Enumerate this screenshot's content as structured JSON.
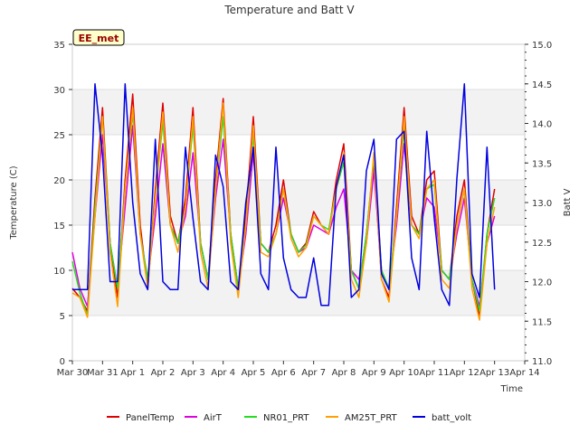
{
  "chart_data": {
    "type": "line",
    "title": "Temperature and Batt V",
    "xlabel": "Time",
    "ylabel": "Temperature (C)",
    "y2label": "Batt V",
    "site_label": "EE_met",
    "xlim": [
      0,
      15
    ],
    "ylim": [
      0,
      35
    ],
    "y2lim": [
      11.0,
      15.0
    ],
    "x_tick_values": [
      0,
      1,
      2,
      3,
      4,
      5,
      6,
      7,
      8,
      9,
      10,
      11,
      12,
      13,
      14,
      15
    ],
    "x_tick_labels": [
      "Mar 30",
      "Mar 31",
      "Apr 1",
      "Apr 2",
      "Apr 3",
      "Apr 4",
      "Apr 5",
      "Apr 6",
      "Apr 7",
      "Apr 8",
      "Apr 9",
      "Apr 10",
      "Apr 11",
      "Apr 12",
      "Apr 13",
      "Apr 14"
    ],
    "y_ticks": [
      0,
      5,
      10,
      15,
      20,
      25,
      30,
      35
    ],
    "y2_ticks": [
      11.0,
      11.5,
      12.0,
      12.5,
      13.0,
      13.5,
      14.0,
      14.5,
      15.0
    ],
    "bands": [
      [
        5,
        10
      ],
      [
        15,
        20
      ],
      [
        25,
        30
      ]
    ],
    "grid": true,
    "legend_position": "bottom",
    "colors": {
      "band": "#f2f2f2",
      "grid": "#dddddd",
      "badge_fill": "#ffffcc",
      "badge_border": "#000000"
    },
    "x": [
      0.0,
      0.25,
      0.5,
      0.75,
      1.0,
      1.25,
      1.5,
      1.75,
      2.0,
      2.25,
      2.5,
      2.75,
      3.0,
      3.25,
      3.5,
      3.75,
      4.0,
      4.25,
      4.5,
      4.75,
      5.0,
      5.25,
      5.5,
      5.75,
      6.0,
      6.25,
      6.5,
      6.75,
      7.0,
      7.25,
      7.5,
      7.75,
      8.0,
      8.25,
      8.5,
      8.75,
      9.0,
      9.25,
      9.5,
      9.75,
      10.0,
      10.25,
      10.5,
      10.75,
      11.0,
      11.25,
      11.5,
      11.75,
      12.0,
      12.25,
      12.5,
      12.75,
      13.0,
      13.25,
      13.5,
      13.75,
      14.0
    ],
    "series": [
      {
        "name": "PanelTemp",
        "color": "#e00000",
        "axis": "left",
        "values": [
          8,
          7,
          5.5,
          18,
          28,
          13,
          7,
          20,
          29.5,
          15,
          8,
          19,
          28.5,
          16,
          13,
          18,
          28,
          13,
          9,
          20,
          29,
          14,
          8,
          16,
          27,
          13,
          12,
          15,
          20,
          14,
          12,
          13,
          16.5,
          15,
          14,
          20,
          24,
          10,
          8,
          14,
          22,
          9,
          7,
          17,
          28,
          16,
          14,
          20,
          21,
          10,
          9,
          16,
          20,
          9,
          5,
          14,
          19
        ]
      },
      {
        "name": "AirT",
        "color": "#e000e0",
        "axis": "left",
        "values": [
          12,
          8,
          6,
          16,
          25,
          13,
          8,
          17,
          26,
          14,
          9,
          16,
          24,
          15,
          13,
          16,
          23,
          13,
          9,
          18,
          24.5,
          14,
          8,
          14,
          23,
          13,
          12,
          14,
          18,
          14,
          12,
          12.5,
          15,
          14.5,
          14,
          17,
          19,
          10,
          9,
          13,
          21,
          10,
          8,
          15,
          24,
          15,
          14,
          18,
          17,
          10,
          9,
          14,
          18,
          9,
          6,
          13,
          16
        ]
      },
      {
        "name": "NR01_PRT",
        "color": "#22dd22",
        "axis": "left",
        "values": [
          11,
          7.5,
          5,
          17,
          27,
          13,
          8,
          19,
          27.5,
          14,
          9,
          18,
          26.5,
          15,
          13,
          17,
          26,
          13,
          9,
          19,
          27,
          14,
          8,
          15,
          25,
          13,
          12,
          14,
          19,
          14,
          12,
          12.8,
          16,
          15,
          14.5,
          19,
          22,
          10,
          8,
          14,
          22.5,
          10,
          8,
          16,
          26,
          15,
          14,
          19,
          19.5,
          10,
          9,
          15,
          19,
          9,
          5.5,
          14,
          18
        ]
      },
      {
        "name": "AM25T_PRT",
        "color": "#ffa000",
        "axis": "left",
        "values": [
          7.5,
          7,
          4.8,
          16,
          27,
          12,
          6,
          19,
          28,
          14,
          8,
          18,
          27.5,
          15,
          12,
          17,
          27,
          12,
          8,
          19,
          28.5,
          13,
          7,
          15,
          26,
          12,
          11.5,
          14,
          19,
          13.5,
          11.5,
          12.5,
          16,
          15,
          14,
          19,
          23,
          9,
          7,
          13,
          23,
          9,
          6.5,
          16,
          27,
          15,
          13.5,
          19,
          20,
          9,
          8,
          15,
          19,
          8,
          4.5,
          13,
          17
        ]
      },
      {
        "name": "batt_volt",
        "color": "#0000e0",
        "axis": "right",
        "values": [
          11.9,
          11.9,
          11.9,
          14.5,
          13.6,
          12.0,
          12.0,
          14.5,
          13.0,
          12.1,
          11.9,
          13.8,
          12.0,
          11.9,
          11.9,
          13.7,
          12.8,
          12.0,
          11.9,
          13.6,
          13.2,
          12.0,
          11.9,
          13.0,
          13.7,
          12.1,
          11.9,
          13.7,
          12.3,
          11.9,
          11.8,
          11.8,
          12.3,
          11.7,
          11.7,
          13.2,
          13.6,
          11.8,
          11.9,
          13.4,
          13.8,
          12.1,
          11.9,
          13.8,
          13.9,
          12.3,
          11.9,
          13.9,
          12.8,
          11.9,
          11.7,
          13.3,
          14.5,
          12.1,
          11.8,
          13.7,
          11.9
        ]
      }
    ]
  }
}
